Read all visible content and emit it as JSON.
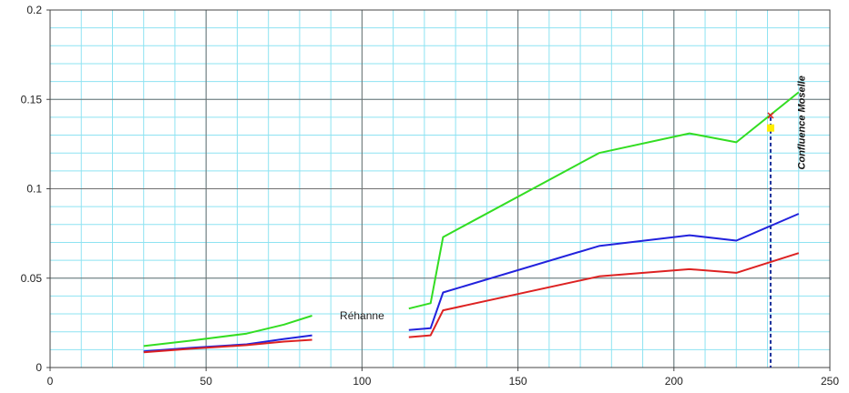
{
  "chart_data": {
    "type": "line",
    "title": "",
    "xlabel": "",
    "ylabel": "",
    "xlim": [
      0,
      250
    ],
    "ylim": [
      0,
      0.2
    ],
    "xticks": [
      0,
      50,
      100,
      150,
      200,
      250
    ],
    "xtick_labels": [
      "0",
      "50",
      "100",
      "150",
      "200",
      "250"
    ],
    "yticks": [
      0,
      0.05,
      0.1,
      0.15,
      0.2
    ],
    "ytick_labels": [
      "0",
      "0.05",
      "0.1",
      "0.15",
      "0.2"
    ],
    "grid": true,
    "series": [
      {
        "color": "#33dd22",
        "segments": [
          [
            [
              30,
              0.012
            ],
            [
              45,
              0.015
            ],
            [
              63,
              0.019
            ],
            [
              75,
              0.024
            ],
            [
              84,
              0.029
            ]
          ],
          [
            [
              115,
              0.033
            ],
            [
              122,
              0.036
            ],
            [
              126,
              0.073
            ],
            [
              176,
              0.12
            ],
            [
              205,
              0.131
            ],
            [
              220,
              0.126
            ],
            [
              240,
              0.154
            ]
          ]
        ]
      },
      {
        "color": "#2222dd",
        "segments": [
          [
            [
              30,
              0.009
            ],
            [
              45,
              0.011
            ],
            [
              63,
              0.013
            ],
            [
              75,
              0.016
            ],
            [
              84,
              0.018
            ]
          ],
          [
            [
              115,
              0.021
            ],
            [
              122,
              0.022
            ],
            [
              126,
              0.042
            ],
            [
              176,
              0.068
            ],
            [
              205,
              0.074
            ],
            [
              220,
              0.071
            ],
            [
              240,
              0.086
            ]
          ]
        ]
      },
      {
        "color": "#dd2222",
        "segments": [
          [
            [
              30,
              0.0085
            ],
            [
              45,
              0.0105
            ],
            [
              63,
              0.0125
            ],
            [
              75,
              0.0145
            ],
            [
              84,
              0.0155
            ]
          ],
          [
            [
              115,
              0.017
            ],
            [
              122,
              0.018
            ],
            [
              126,
              0.032
            ],
            [
              176,
              0.051
            ],
            [
              205,
              0.055
            ],
            [
              220,
              0.053
            ],
            [
              240,
              0.064
            ]
          ]
        ]
      }
    ],
    "markers": [
      {
        "x": 231,
        "y": 0.141,
        "color": "#dd2222",
        "shape": "cross"
      },
      {
        "x": 231,
        "y": 0.134,
        "color": "#ffee00",
        "shape": "square"
      }
    ],
    "vline": {
      "x": 231,
      "y_top": 0.14,
      "color": "#1a2f9a",
      "style": "dashed"
    },
    "annotations": [
      {
        "text": "Réhanne",
        "x": 100,
        "y": 0.029
      },
      {
        "text": "Confluence Moselle",
        "x": 242,
        "y": 0.137,
        "rotation": -90
      }
    ]
  }
}
